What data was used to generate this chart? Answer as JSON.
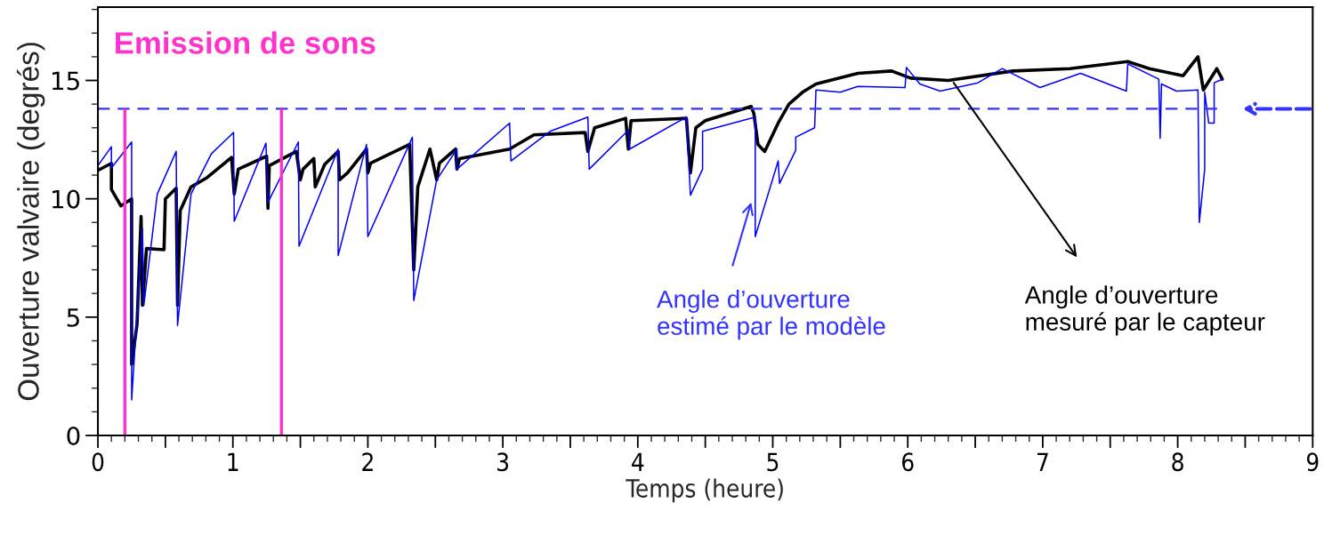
{
  "chart_data": {
    "type": "line",
    "xlabel": "Temps (heure)",
    "ylabel": "Ouverture valvaire (degrés)",
    "xlim": [
      0,
      9
    ],
    "ylim": [
      0,
      18.1
    ],
    "xticks": [
      0,
      {
        "value": 0.5,
        "label": null
      },
      1,
      {
        "value": 1.5,
        "label": null
      },
      2,
      {
        "value": 2.5,
        "label": null
      },
      3,
      {
        "value": 3.5,
        "label": null
      },
      4,
      {
        "value": 4.5,
        "label": null
      },
      5,
      {
        "value": 5.5,
        "label": null
      },
      6,
      {
        "value": 6.5,
        "label": null
      },
      7,
      {
        "value": 7.5,
        "label": null
      },
      8,
      {
        "value": 8.5,
        "label": null
      },
      9
    ],
    "yticks": [
      0,
      5,
      10,
      15
    ],
    "grid": false,
    "legend": false,
    "marker": "none",
    "line_style": "solid",
    "series": [
      {
        "color": "#000000",
        "x": [
          0,
          0.1,
          0.1,
          0.17,
          0.25,
          0.25,
          0.29,
          0.32,
          0.33,
          0.36,
          0.49,
          0.5,
          0.58,
          0.59,
          0.61,
          0.69,
          0.81,
          0.99,
          1.01,
          1.04,
          1.25,
          1.26,
          1.27,
          1.47,
          1.5,
          1.52,
          1.6,
          1.61,
          1.68,
          1.78,
          1.79,
          1.85,
          1.99,
          2.0,
          2.02,
          2.31,
          2.34,
          2.37,
          2.46,
          2.51,
          2.53,
          2.65,
          2.66,
          2.68,
          3.05,
          3.23,
          3.61,
          3.63,
          3.68,
          3.91,
          3.93,
          3.95,
          4.36,
          4.39,
          4.43,
          4.5,
          4.84,
          4.86,
          4.89,
          4.94,
          5.04,
          5.12,
          5.22,
          5.32,
          5.63,
          5.88,
          6.02,
          6.3,
          6.78,
          7.2,
          7.63,
          7.79,
          8.04,
          8.15,
          8.19,
          8.29,
          8.33
        ],
        "values": [
          11.2,
          11.5,
          10.4,
          9.7,
          10.0,
          3.0,
          4.7,
          9.25,
          5.5,
          7.9,
          7.85,
          10.0,
          10.45,
          5.5,
          9.5,
          10.5,
          10.9,
          11.75,
          10.2,
          11.25,
          11.8,
          9.6,
          11.4,
          12.0,
          10.8,
          11.25,
          11.7,
          10.5,
          11.45,
          12.0,
          10.8,
          11.1,
          12.1,
          11.1,
          11.5,
          12.3,
          7.0,
          10.5,
          12.1,
          10.8,
          11.5,
          12.1,
          11.25,
          11.7,
          12.1,
          12.7,
          12.8,
          12.0,
          13.0,
          13.4,
          12.1,
          13.3,
          13.4,
          11.1,
          13.0,
          13.3,
          13.9,
          13.6,
          12.3,
          12.0,
          13.2,
          14.0,
          14.5,
          14.85,
          15.3,
          15.4,
          15.1,
          15.0,
          15.4,
          15.5,
          15.8,
          15.5,
          15.2,
          16.0,
          14.6,
          15.5,
          15.05
        ]
      },
      {
        "color": "#0000ff",
        "x": [
          0,
          0.1,
          0.1,
          0.25,
          0.25,
          0.33,
          0.34,
          0.44,
          0.58,
          0.59,
          0.69,
          0.84,
          1.005,
          1.01,
          1.245,
          1.26,
          1.485,
          1.49,
          1.78,
          1.78,
          1.99,
          2.0,
          2.33,
          2.34,
          2.51,
          2.66,
          2.66,
          3.05,
          3.06,
          3.35,
          3.63,
          3.64,
          3.93,
          3.94,
          4.36,
          4.39,
          4.48,
          4.48,
          4.87,
          4.87,
          5.04,
          5.05,
          5.17,
          5.17,
          5.31,
          5.32,
          5.5,
          5.63,
          5.98,
          5.99,
          6.09,
          6.24,
          6.52,
          6.7,
          6.98,
          7.28,
          7.62,
          7.63,
          7.86,
          7.87,
          7.88,
          7.99,
          8.15,
          8.16,
          8.2,
          8.2,
          8.23,
          8.27,
          8.27,
          8.33
        ],
        "values": [
          11.4,
          12.2,
          11.3,
          12.4,
          1.5,
          8.75,
          5.5,
          10.2,
          12.0,
          4.65,
          10.2,
          11.9,
          12.8,
          9.05,
          12.35,
          9.85,
          12.4,
          8.0,
          12.1,
          7.6,
          12.3,
          8.4,
          12.6,
          5.7,
          10.8,
          12.1,
          11.25,
          13.2,
          11.6,
          12.85,
          13.45,
          11.25,
          12.9,
          12.1,
          13.45,
          10.15,
          11.25,
          12.85,
          13.45,
          8.4,
          11.6,
          10.65,
          12.05,
          12.6,
          13.0,
          14.6,
          14.5,
          14.75,
          14.7,
          15.55,
          14.85,
          14.55,
          14.9,
          15.5,
          14.7,
          15.3,
          14.55,
          15.7,
          15.05,
          12.55,
          14.85,
          14.55,
          14.6,
          9.0,
          11.25,
          14.5,
          13.2,
          13.2,
          14.9,
          15.05
        ]
      }
    ],
    "ref_lines": [
      {
        "axis": "y",
        "value": 13.8,
        "color": "#3333ff",
        "line_style": "dashed"
      },
      {
        "axis": "x",
        "value": 0.2,
        "color": "#ff33cc",
        "line_style": "solid"
      },
      {
        "axis": "x",
        "value": 1.36,
        "color": "#ff33cc",
        "line_style": "solid"
      }
    ],
    "annotations": [
      {
        "text": "Emission de sons"
      },
      {
        "text": "Angle d’ouverture\nestimé par le modèle",
        "x": 4.84,
        "y": 9.85
      },
      {
        "text": "Angle d’ouverture\nmesuré par le capteur",
        "x": 6.34,
        "y": 14.9
      }
    ]
  }
}
